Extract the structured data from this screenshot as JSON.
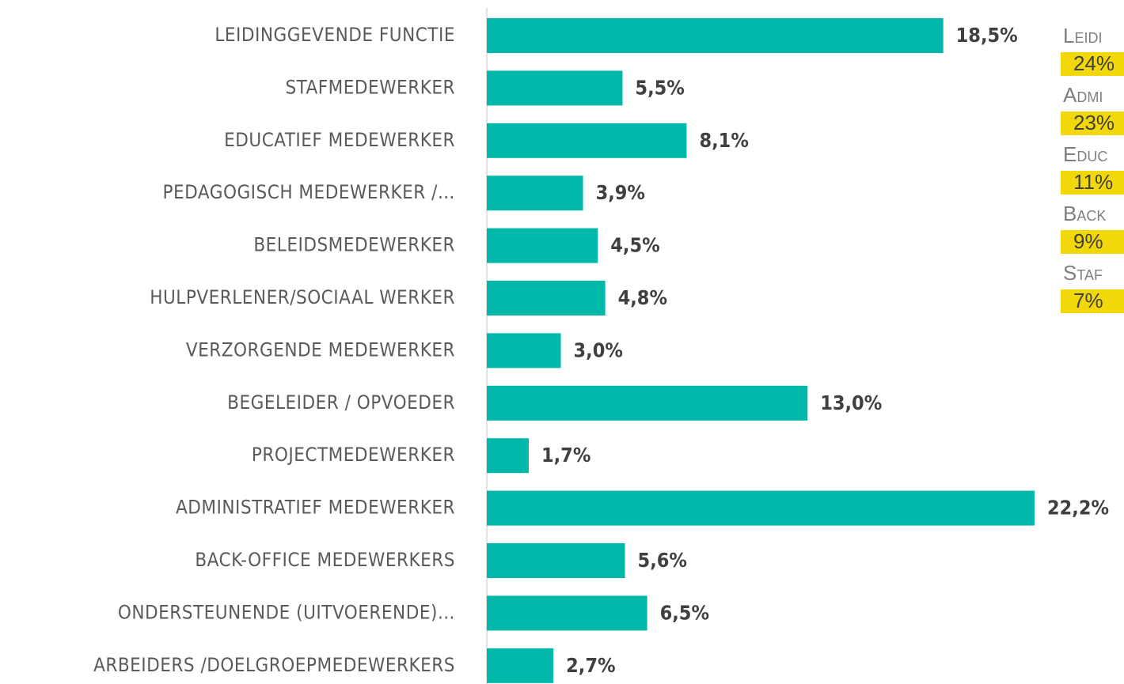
{
  "chart_data": {
    "type": "bar",
    "orientation": "horizontal",
    "categories": [
      "LEIDINGGEVENDE FUNCTIE",
      "STAFMEDEWERKER",
      "EDUCATIEF MEDEWERKER",
      "PEDAGOGISCH MEDEWERKER /…",
      "BELEIDSMEDEWERKER",
      "HULPVERLENER/SOCIAAL WERKER",
      "VERZORGENDE MEDEWERKER",
      "BEGELEIDER / OPVOEDER",
      "PROJECTMEDEWERKER",
      "ADMINISTRATIEF MEDEWERKER",
      "BACK-OFFICE MEDEWERKERS",
      "ONDERSTEUNENDE (UITVOERENDE)…",
      "ARBEIDERS /DOELGROEPMEDEWERKERS"
    ],
    "values": [
      18.5,
      5.5,
      8.1,
      3.9,
      4.5,
      4.8,
      3.0,
      13.0,
      1.7,
      22.2,
      5.6,
      6.5,
      2.7
    ],
    "value_labels": [
      "18,5%",
      "5,5%",
      "8,1%",
      "3,9%",
      "4,5%",
      "4,8%",
      "3,0%",
      "13,0%",
      "1,7%",
      "22,2%",
      "5,6%",
      "6,5%",
      "2,7%"
    ],
    "color": "#00b8a9",
    "xlim": [
      0,
      25
    ]
  },
  "side_panel": {
    "items": [
      {
        "label": "Leidi",
        "value": "24%"
      },
      {
        "label": "Admi",
        "value": "23%"
      },
      {
        "label": "Educ",
        "value": "11%"
      },
      {
        "label": "Back",
        "value": "9%"
      },
      {
        "label": "Staf",
        "value": "7%"
      }
    ]
  }
}
